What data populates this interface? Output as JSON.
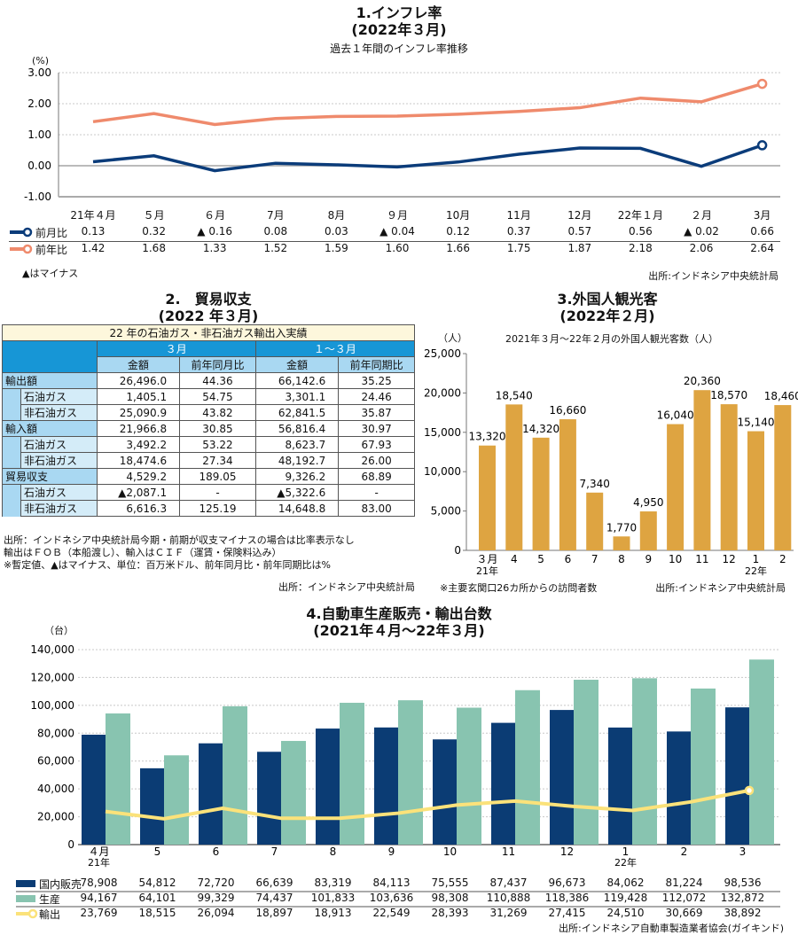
{
  "section1": {
    "title_line1": "1.インフレ率",
    "title_line2": "(2022年３月)",
    "subtitle": "過去１年間のインフレ率推移",
    "unit": "(%)",
    "note": "▲はマイナス",
    "source": "出所:インドネシア中央統計局"
  },
  "section2": {
    "title_line1": "2.　貿易収支",
    "title_line2": "(2022 年３月)",
    "table_caption": "22 年の石油ガス・非石油ガス輸出入実績",
    "group_headers": [
      "３月",
      "１～３月"
    ],
    "col_headers": [
      "金額",
      "前年同月比",
      "金額",
      "前年同期比"
    ],
    "rows": [
      {
        "label": "輸出額",
        "level": 1,
        "values": [
          "26,496.0",
          "44.36",
          "66,142.6",
          "35.25"
        ]
      },
      {
        "label": "石油ガス",
        "level": 2,
        "values": [
          "1,405.1",
          "54.75",
          "3,301.1",
          "24.46"
        ]
      },
      {
        "label": "非石油ガス",
        "level": 2,
        "values": [
          "25,090.9",
          "43.82",
          "62,841.5",
          "35.87"
        ]
      },
      {
        "label": "輸入額",
        "level": 1,
        "values": [
          "21,966.8",
          "30.85",
          "56,816.4",
          "30.97"
        ]
      },
      {
        "label": "石油ガス",
        "level": 2,
        "values": [
          "3,492.2",
          "53.22",
          "8,623.7",
          "67.93"
        ]
      },
      {
        "label": "非石油ガス",
        "level": 2,
        "values": [
          "18,474.6",
          "27.34",
          "48,192.7",
          "26.00"
        ]
      },
      {
        "label": "貿易収支",
        "level": 1,
        "values": [
          "4,529.2",
          "189.05",
          "9,326.2",
          "68.89"
        ]
      },
      {
        "label": "石油ガス",
        "level": 2,
        "values": [
          "▲2,087.1",
          "-",
          "▲5,322.6",
          "-"
        ]
      },
      {
        "label": "非石油ガス",
        "level": 2,
        "values": [
          "6,616.3",
          "125.19",
          "14,648.8",
          "83.00"
        ]
      }
    ],
    "notes": [
      "出所：インドネシア中央統計局今期・前期が収支マイナスの場合は比率表示なし",
      "輸出はＦＯＢ（本船渡し）、輸入はＣＩＦ（運賃・保険料込み）",
      "※暫定値、▲はマイナス、単位：百万米ドル、前年同月比・前年同期比は%"
    ],
    "source": "出所：インドネシア中央統計局"
  },
  "section3": {
    "title_line1": "3.外国人観光客",
    "title_line2": "(2022年２月)",
    "note": "※主要玄関口26カ所からの訪問者数",
    "source": "出所:インドネシア中央統計局"
  },
  "section4": {
    "title_line1": "4.自動車生産販売・輸出台数",
    "title_line2": "(2021年４月～22年３月)",
    "source": "出所:インドネシア自動車製造業者協会(ガイキンド)"
  },
  "chart_data": [
    {
      "type": "line",
      "title": "過去１年間のインフレ率推移",
      "ylabel": "(%)",
      "ylim": [
        -1.0,
        3.0
      ],
      "yticks": [
        "3.00",
        "2.00",
        "1.00",
        "0.00",
        "-1.00"
      ],
      "grid": true,
      "categories": [
        "21年４月",
        "５月",
        "６月",
        "7月",
        "8月",
        "９月",
        "10月",
        "11月",
        "12月",
        "22年１月",
        "２月",
        "3月"
      ],
      "series": [
        {
          "name": "前月比",
          "color": "#0b3c7a",
          "values": [
            0.13,
            0.32,
            -0.16,
            0.08,
            0.03,
            -0.04,
            0.12,
            0.37,
            0.57,
            0.56,
            -0.02,
            0.66
          ],
          "labels": [
            "0.13",
            "0.32",
            "▲ 0.16",
            "0.08",
            "0.03",
            "▲ 0.04",
            "0.12",
            "0.37",
            "0.57",
            "0.56",
            "▲ 0.02",
            "0.66"
          ]
        },
        {
          "name": "前年比",
          "color": "#ef8a6c",
          "values": [
            1.42,
            1.68,
            1.33,
            1.52,
            1.59,
            1.6,
            1.66,
            1.75,
            1.87,
            2.18,
            2.06,
            2.64
          ],
          "labels": [
            "1.42",
            "1.68",
            "1.33",
            "1.52",
            "1.59",
            "1.60",
            "1.66",
            "1.75",
            "1.87",
            "2.18",
            "2.06",
            "2.64"
          ]
        }
      ]
    },
    {
      "type": "bar",
      "title": "2021年３月～22年２月の外国人観光客数（人）",
      "ylabel": "（人）",
      "ylim": [
        0,
        25000
      ],
      "yticks": [
        "25,000",
        "20,000",
        "15,000",
        "10,000",
        "5,000",
        "0"
      ],
      "categories": [
        "３月",
        "4",
        "5",
        "6",
        "7",
        "8",
        "9",
        "10",
        "11",
        "12",
        "1",
        "2"
      ],
      "year_labels": {
        "0": "21年",
        "10": "22年"
      },
      "color": "#dea441",
      "values": [
        13320,
        18540,
        14320,
        16660,
        7340,
        1770,
        4950,
        16040,
        20360,
        18570,
        15140,
        18460
      ],
      "labels": [
        "13,320",
        "18,540",
        "14,320",
        "16,660",
        "7,340",
        "1,770",
        "4,950",
        "16,040",
        "20,360",
        "18,570",
        "15,140",
        "18,460"
      ]
    },
    {
      "type": "bar",
      "title": "自動車生産販売・輸出台数",
      "ylabel": "（台）",
      "ylim": [
        0,
        140000
      ],
      "yticks": [
        "140,000",
        "120,000",
        "100,000",
        "80,000",
        "60,000",
        "40,000",
        "20,000",
        "0"
      ],
      "grid": true,
      "categories": [
        "４月",
        "5",
        "6",
        "7",
        "8",
        "9",
        "10",
        "11",
        "12",
        "1",
        "2",
        "3"
      ],
      "year_labels": {
        "0": "21年",
        "9": "22年"
      },
      "series": [
        {
          "name": "国内販売",
          "kind": "bar",
          "color": "#0b3c74",
          "values": [
            78908,
            54812,
            72720,
            66639,
            83319,
            84113,
            75555,
            87437,
            96673,
            84062,
            81224,
            98536
          ],
          "labels": [
            "78,908",
            "54,812",
            "72,720",
            "66,639",
            "83,319",
            "84,113",
            "75,555",
            "87,437",
            "96,673",
            "84,062",
            "81,224",
            "98,536"
          ]
        },
        {
          "name": "生産",
          "kind": "bar",
          "color": "#88c4b0",
          "values": [
            94167,
            64101,
            99329,
            74437,
            101833,
            103636,
            98308,
            110888,
            118386,
            119428,
            112072,
            132872
          ],
          "labels": [
            "94,167",
            "64,101",
            "99,329",
            "74,437",
            "101,833",
            "103,636",
            "98,308",
            "110,888",
            "118,386",
            "119,428",
            "112,072",
            "132,872"
          ]
        },
        {
          "name": "輸出",
          "kind": "line",
          "color": "#fbe27a",
          "values": [
            23769,
            18515,
            26094,
            18897,
            18913,
            22549,
            28393,
            31269,
            27415,
            24510,
            30669,
            38892
          ],
          "labels": [
            "23,769",
            "18,515",
            "26,094",
            "18,897",
            "18,913",
            "22,549",
            "28,393",
            "31,269",
            "27,415",
            "24,510",
            "30,669",
            "38,892"
          ]
        }
      ]
    }
  ]
}
